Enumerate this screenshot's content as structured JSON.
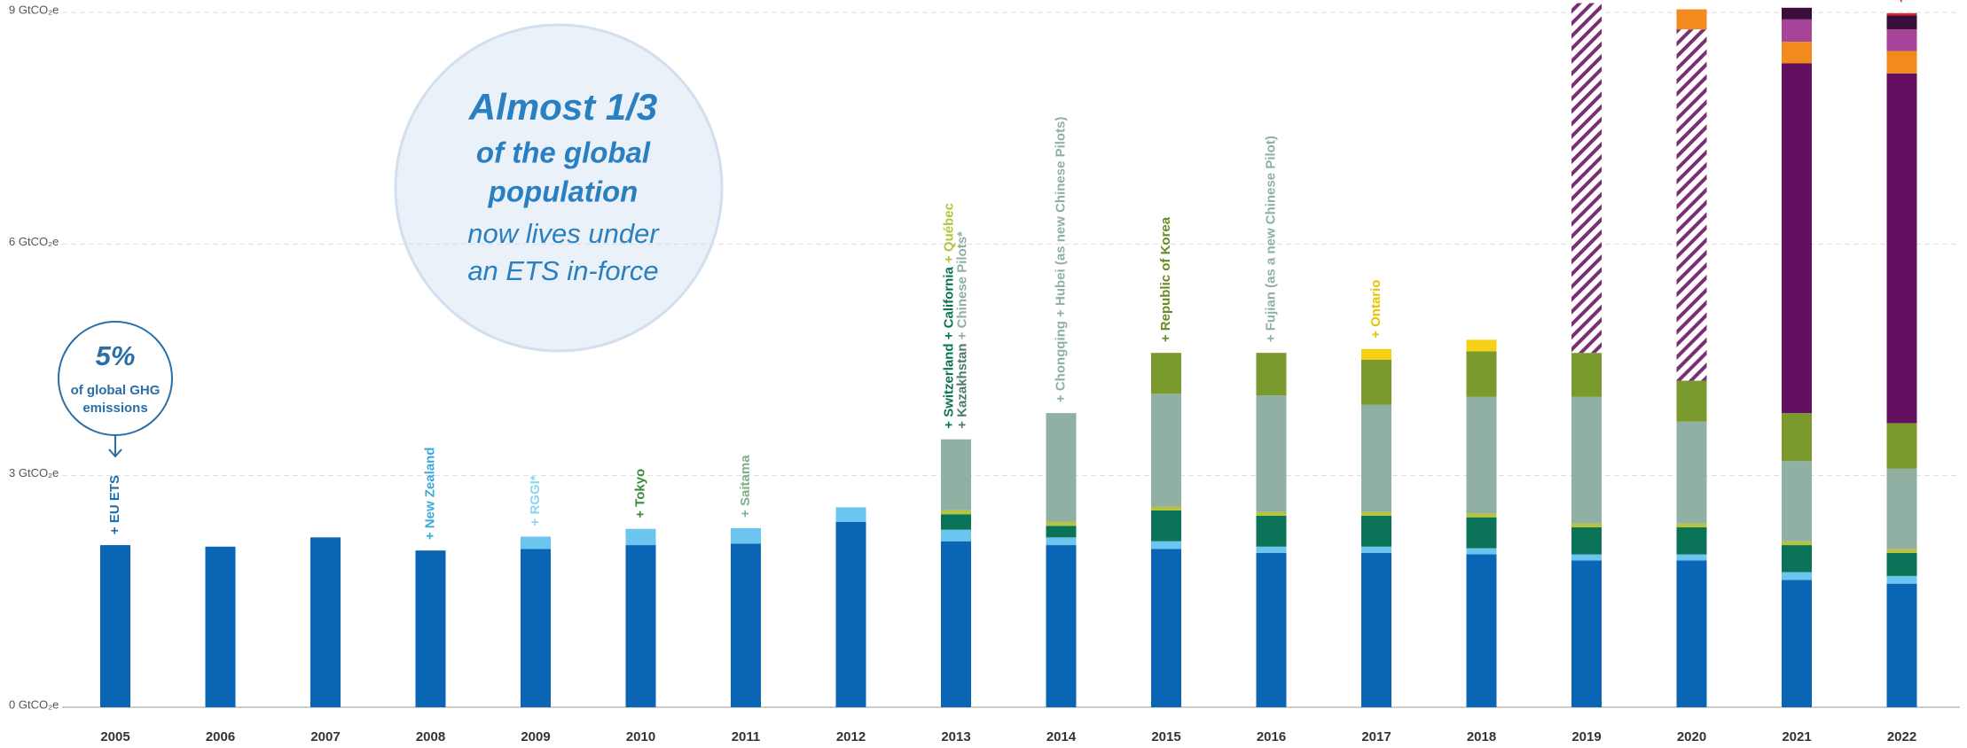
{
  "chart_data": {
    "type": "stacked_bar",
    "categories": [
      "2005",
      "2006",
      "2007",
      "2008",
      "2009",
      "2010",
      "2011",
      "2012",
      "2013",
      "2014",
      "2015",
      "2016",
      "2017",
      "2018",
      "2019",
      "2020",
      "2021",
      "2022"
    ],
    "series": [
      {
        "color": "#0a66b5",
        "values": [
          2.1,
          2.08,
          2.2,
          2.03,
          2.05,
          2.1,
          2.12,
          2.4,
          2.15,
          2.1,
          2.05,
          2.0,
          2.0,
          1.98,
          1.9,
          1.9,
          1.65,
          1.6
        ]
      },
      {
        "color": "#6cc5ee",
        "values": [
          null,
          null,
          null,
          null,
          0.16,
          0.21,
          0.2,
          0.19,
          0.15,
          0.1,
          0.1,
          0.08,
          0.08,
          0.08,
          0.08,
          0.08,
          0.1,
          0.1
        ]
      },
      {
        "color": "#0b7357",
        "values": [
          null,
          null,
          null,
          null,
          null,
          null,
          null,
          null,
          0.2,
          0.15,
          0.4,
          0.4,
          0.4,
          0.4,
          0.35,
          0.35,
          0.35,
          0.3
        ]
      },
      {
        "color": "#b5c43a",
        "values": [
          null,
          null,
          null,
          null,
          null,
          null,
          null,
          null,
          0.05,
          0.05,
          0.05,
          0.05,
          0.05,
          0.05,
          0.05,
          0.05,
          0.05,
          0.05
        ]
      },
      {
        "color": "#8fb0a3",
        "values": [
          null,
          null,
          null,
          null,
          null,
          null,
          null,
          null,
          0.92,
          1.41,
          1.46,
          1.51,
          1.39,
          1.51,
          1.64,
          1.32,
          1.04,
          1.04
        ]
      },
      {
        "color": "#7a9a2e",
        "values": [
          null,
          null,
          null,
          null,
          null,
          null,
          null,
          null,
          null,
          null,
          0.53,
          0.55,
          0.58,
          0.59,
          0.57,
          0.53,
          0.62,
          0.59
        ]
      },
      {
        "color": "#f4d016",
        "values": [
          null,
          null,
          null,
          null,
          null,
          null,
          null,
          null,
          null,
          null,
          null,
          null,
          0.14,
          0.15,
          null,
          null,
          null,
          null
        ]
      },
      {
        "color": "#7b2e73",
        "hatch": true,
        "values": [
          null,
          null,
          null,
          null,
          null,
          null,
          null,
          null,
          null,
          null,
          null,
          null,
          null,
          null,
          4.53,
          4.55,
          null,
          null
        ]
      },
      {
        "color": "#631060",
        "values": [
          null,
          null,
          null,
          null,
          null,
          null,
          null,
          null,
          null,
          null,
          null,
          null,
          null,
          null,
          null,
          null,
          4.53,
          4.53
        ]
      },
      {
        "color": "#f28a1d",
        "values": [
          null,
          null,
          null,
          null,
          null,
          null,
          null,
          null,
          null,
          null,
          null,
          null,
          null,
          null,
          null,
          0.26,
          0.28,
          0.29
        ]
      },
      {
        "color": "#a8439a",
        "values": [
          null,
          null,
          null,
          null,
          null,
          null,
          null,
          null,
          null,
          null,
          null,
          null,
          null,
          null,
          null,
          null,
          0.29,
          0.28
        ]
      },
      {
        "color": "#3a0d3a",
        "values": [
          null,
          null,
          null,
          null,
          null,
          null,
          null,
          null,
          null,
          null,
          null,
          null,
          null,
          null,
          null,
          null,
          0.15,
          0.18
        ]
      },
      {
        "color": "#e0242b",
        "values": [
          null,
          null,
          null,
          null,
          null,
          null,
          null,
          null,
          null,
          null,
          null,
          null,
          null,
          null,
          null,
          null,
          null,
          0.03
        ]
      }
    ],
    "ylim": [
      0,
      9
    ],
    "yticks": [
      {
        "value": 0,
        "label": "0 GtCO₂e"
      },
      {
        "value": 3,
        "label": "3 GtCO₂e"
      },
      {
        "value": 6,
        "label": "6 GtCO₂e"
      },
      {
        "value": 9,
        "label": "9 GtCO₂e"
      }
    ],
    "grid": true,
    "annotations": [
      {
        "category": 0,
        "lines": [
          [
            {
              "text": "+ EU ETS",
              "color": "#1b6db3"
            }
          ]
        ]
      },
      {
        "category": 3,
        "lines": [
          [
            {
              "text": "+ New Zealand",
              "color": "#3aa9dd"
            }
          ]
        ]
      },
      {
        "category": 4,
        "lines": [
          [
            {
              "text": "+ RGGI*",
              "color": "#8fd3f4"
            }
          ]
        ]
      },
      {
        "category": 5,
        "lines": [
          [
            {
              "text": "+ Tokyo",
              "color": "#3d8a3a"
            }
          ]
        ]
      },
      {
        "category": 6,
        "lines": [
          [
            {
              "text": "+ Saitama",
              "color": "#7fb08a"
            }
          ]
        ]
      },
      {
        "category": 8,
        "lines": [
          [
            {
              "text": "+ Switzerland + California ",
              "color": "#0b7357"
            },
            {
              "text": "+ Québec",
              "color": "#b5c43a"
            }
          ],
          [
            {
              "text": "+ Kazakhstan ",
              "color": "#4f7a6a"
            },
            {
              "text": "+ Chinese Pilots*",
              "color": "#8fb0a3"
            }
          ]
        ]
      },
      {
        "category": 9,
        "lines": [
          [
            {
              "text": "+ Chongqing + Hubei (as new Chinese Pilots)",
              "color": "#8fb0a3"
            }
          ]
        ]
      },
      {
        "category": 10,
        "lines": [
          [
            {
              "text": "+ Republic of Korea",
              "color": "#6a8a22"
            }
          ]
        ]
      },
      {
        "category": 11,
        "lines": [
          [
            {
              "text": "+ Fujian (as a new Chinese Pilot)",
              "color": "#8fb0a3"
            }
          ]
        ]
      },
      {
        "category": 12,
        "lines": [
          [
            {
              "text": "+ Ontario",
              "color": "#e8c400"
            }
          ]
        ]
      },
      {
        "category": 17,
        "lines": [
          [
            {
              "text": "+",
              "color": "#e0242b"
            }
          ]
        ]
      }
    ],
    "callouts": {
      "share": {
        "value": "5%",
        "lines": [
          "of global GHG",
          "emissions"
        ]
      },
      "population": {
        "lines": [
          "Almost 1/3",
          "of the global",
          "population",
          "now lives under",
          "an ETS in-force"
        ]
      }
    }
  }
}
